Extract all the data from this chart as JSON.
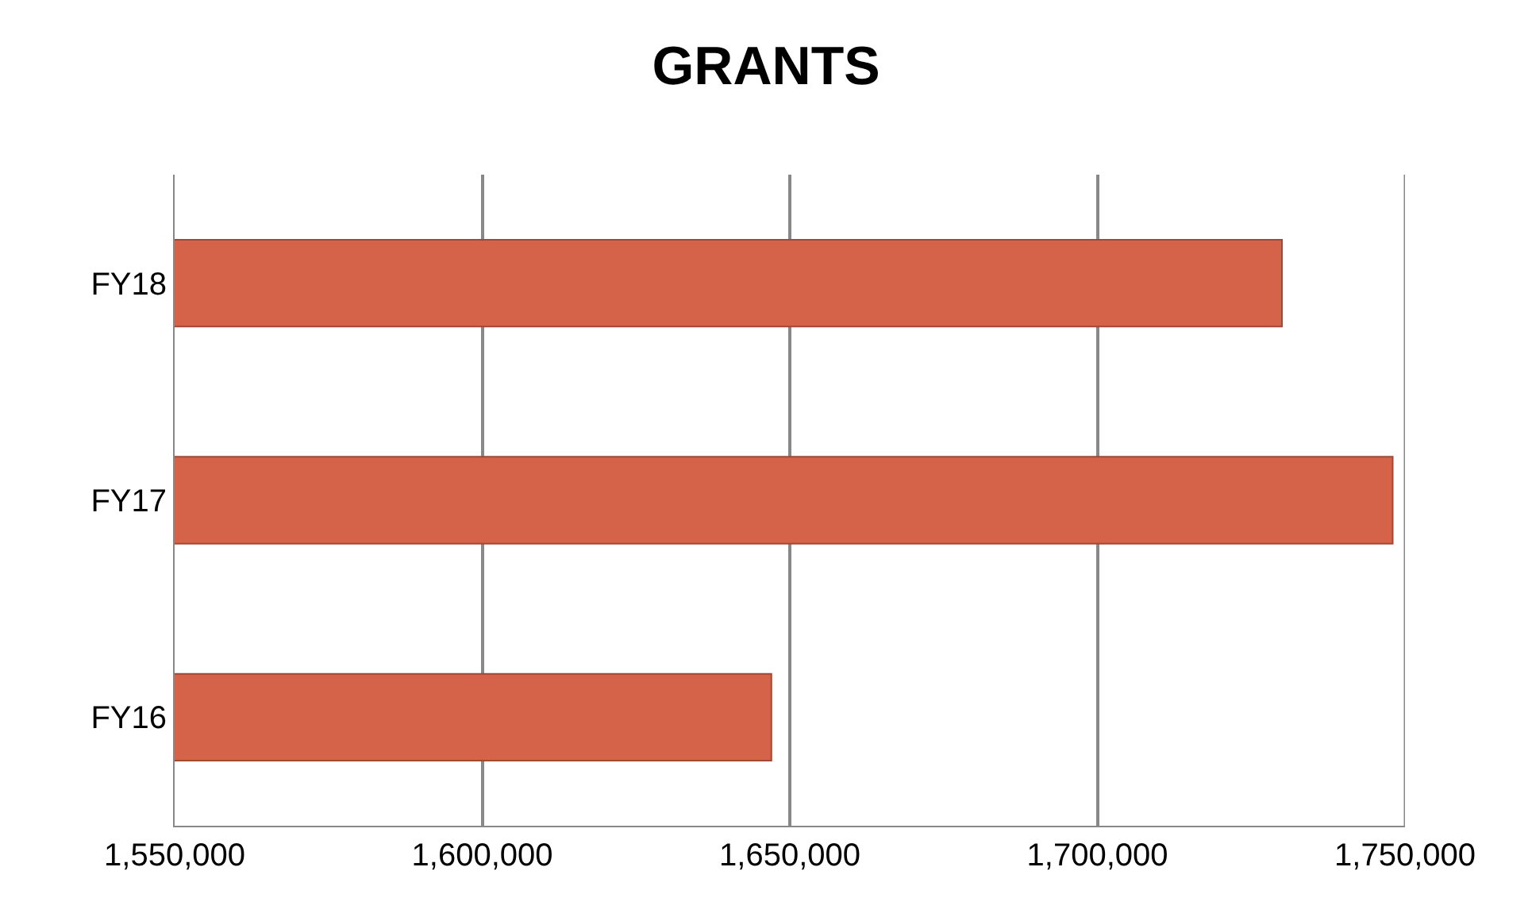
{
  "chart_data": {
    "type": "bar",
    "orientation": "horizontal",
    "title": "GRANTS",
    "categories": [
      "FY18",
      "FY17",
      "FY16"
    ],
    "values": [
      1730000,
      1748000,
      1647000
    ],
    "color": "#d4634a",
    "xlim": [
      1550000,
      1750000
    ],
    "xticks": [
      {
        "value": 1550000,
        "label": "1,550,000"
      },
      {
        "value": 1600000,
        "label": "1,600,000"
      },
      {
        "value": 1650000,
        "label": "1,650,000"
      },
      {
        "value": 1700000,
        "label": "1,700,000"
      },
      {
        "value": 1750000,
        "label": "1,750,000"
      }
    ],
    "grid": "x"
  }
}
